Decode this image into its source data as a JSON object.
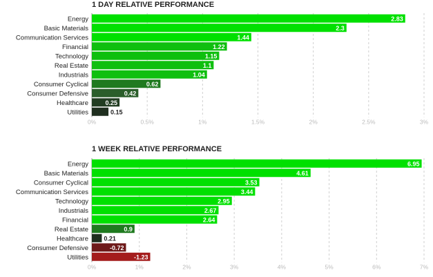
{
  "chart_data": [
    {
      "type": "bar",
      "orientation": "horizontal",
      "title": "1 DAY RELATIVE PERFORMANCE",
      "categories": [
        "Energy",
        "Basic Materials",
        "Communication Services",
        "Financial",
        "Technology",
        "Real Estate",
        "Industrials",
        "Consumer Cyclical",
        "Consumer Defensive",
        "Healthcare",
        "Utilities"
      ],
      "values": [
        2.83,
        2.3,
        1.44,
        1.22,
        1.15,
        1.1,
        1.04,
        0.62,
        0.42,
        0.25,
        0.15
      ],
      "value_labels": [
        "2.83",
        "2.3",
        "1.44",
        "1.22",
        "1.15",
        "1.1",
        "1.04",
        "0.62",
        "0.42",
        "0.25",
        "0.15"
      ],
      "xlim": [
        0,
        3
      ],
      "xticks": [
        "0%",
        "0.5%",
        "1%",
        "1.5%",
        "2%",
        "2.5%",
        "3%"
      ],
      "xtick_values": [
        0,
        0.5,
        1,
        1.5,
        2,
        2.5,
        3
      ],
      "grid": "vertical dashed",
      "colors": [
        "#00e000",
        "#00e000",
        "#00e000",
        "#0fbf0f",
        "#0fbf0f",
        "#0fbf0f",
        "#0fbf0f",
        "#1f7a1f",
        "#2a5e2a",
        "#223d22",
        "#1f2f1f"
      ]
    },
    {
      "type": "bar",
      "orientation": "horizontal",
      "title": "1 WEEK RELATIVE PERFORMANCE",
      "categories": [
        "Energy",
        "Basic Materials",
        "Consumer Cyclical",
        "Communication Services",
        "Technology",
        "Industrials",
        "Financial",
        "Real Estate",
        "Healthcare",
        "Consumer Defensive",
        "Utilities"
      ],
      "values": [
        6.95,
        4.61,
        3.53,
        3.44,
        2.95,
        2.67,
        2.64,
        0.9,
        0.21,
        -0.72,
        -1.23
      ],
      "value_labels": [
        "6.95",
        "4.61",
        "3.53",
        "3.44",
        "2.95",
        "2.67",
        "2.64",
        "0.9",
        "0.21",
        "-0.72",
        "-1.23"
      ],
      "xlim": [
        0,
        7
      ],
      "xticks": [
        "0%",
        "1%",
        "2%",
        "3%",
        "4%",
        "5%",
        "6%",
        "7%"
      ],
      "xtick_values": [
        0,
        1,
        2,
        3,
        4,
        5,
        6,
        7
      ],
      "grid": "vertical dashed",
      "colors": [
        "#00e000",
        "#00e000",
        "#00e000",
        "#00e000",
        "#00e000",
        "#00e000",
        "#00e000",
        "#1f7a1f",
        "#1f2f1f",
        "#6e1a1a",
        "#a41c1c"
      ]
    }
  ]
}
